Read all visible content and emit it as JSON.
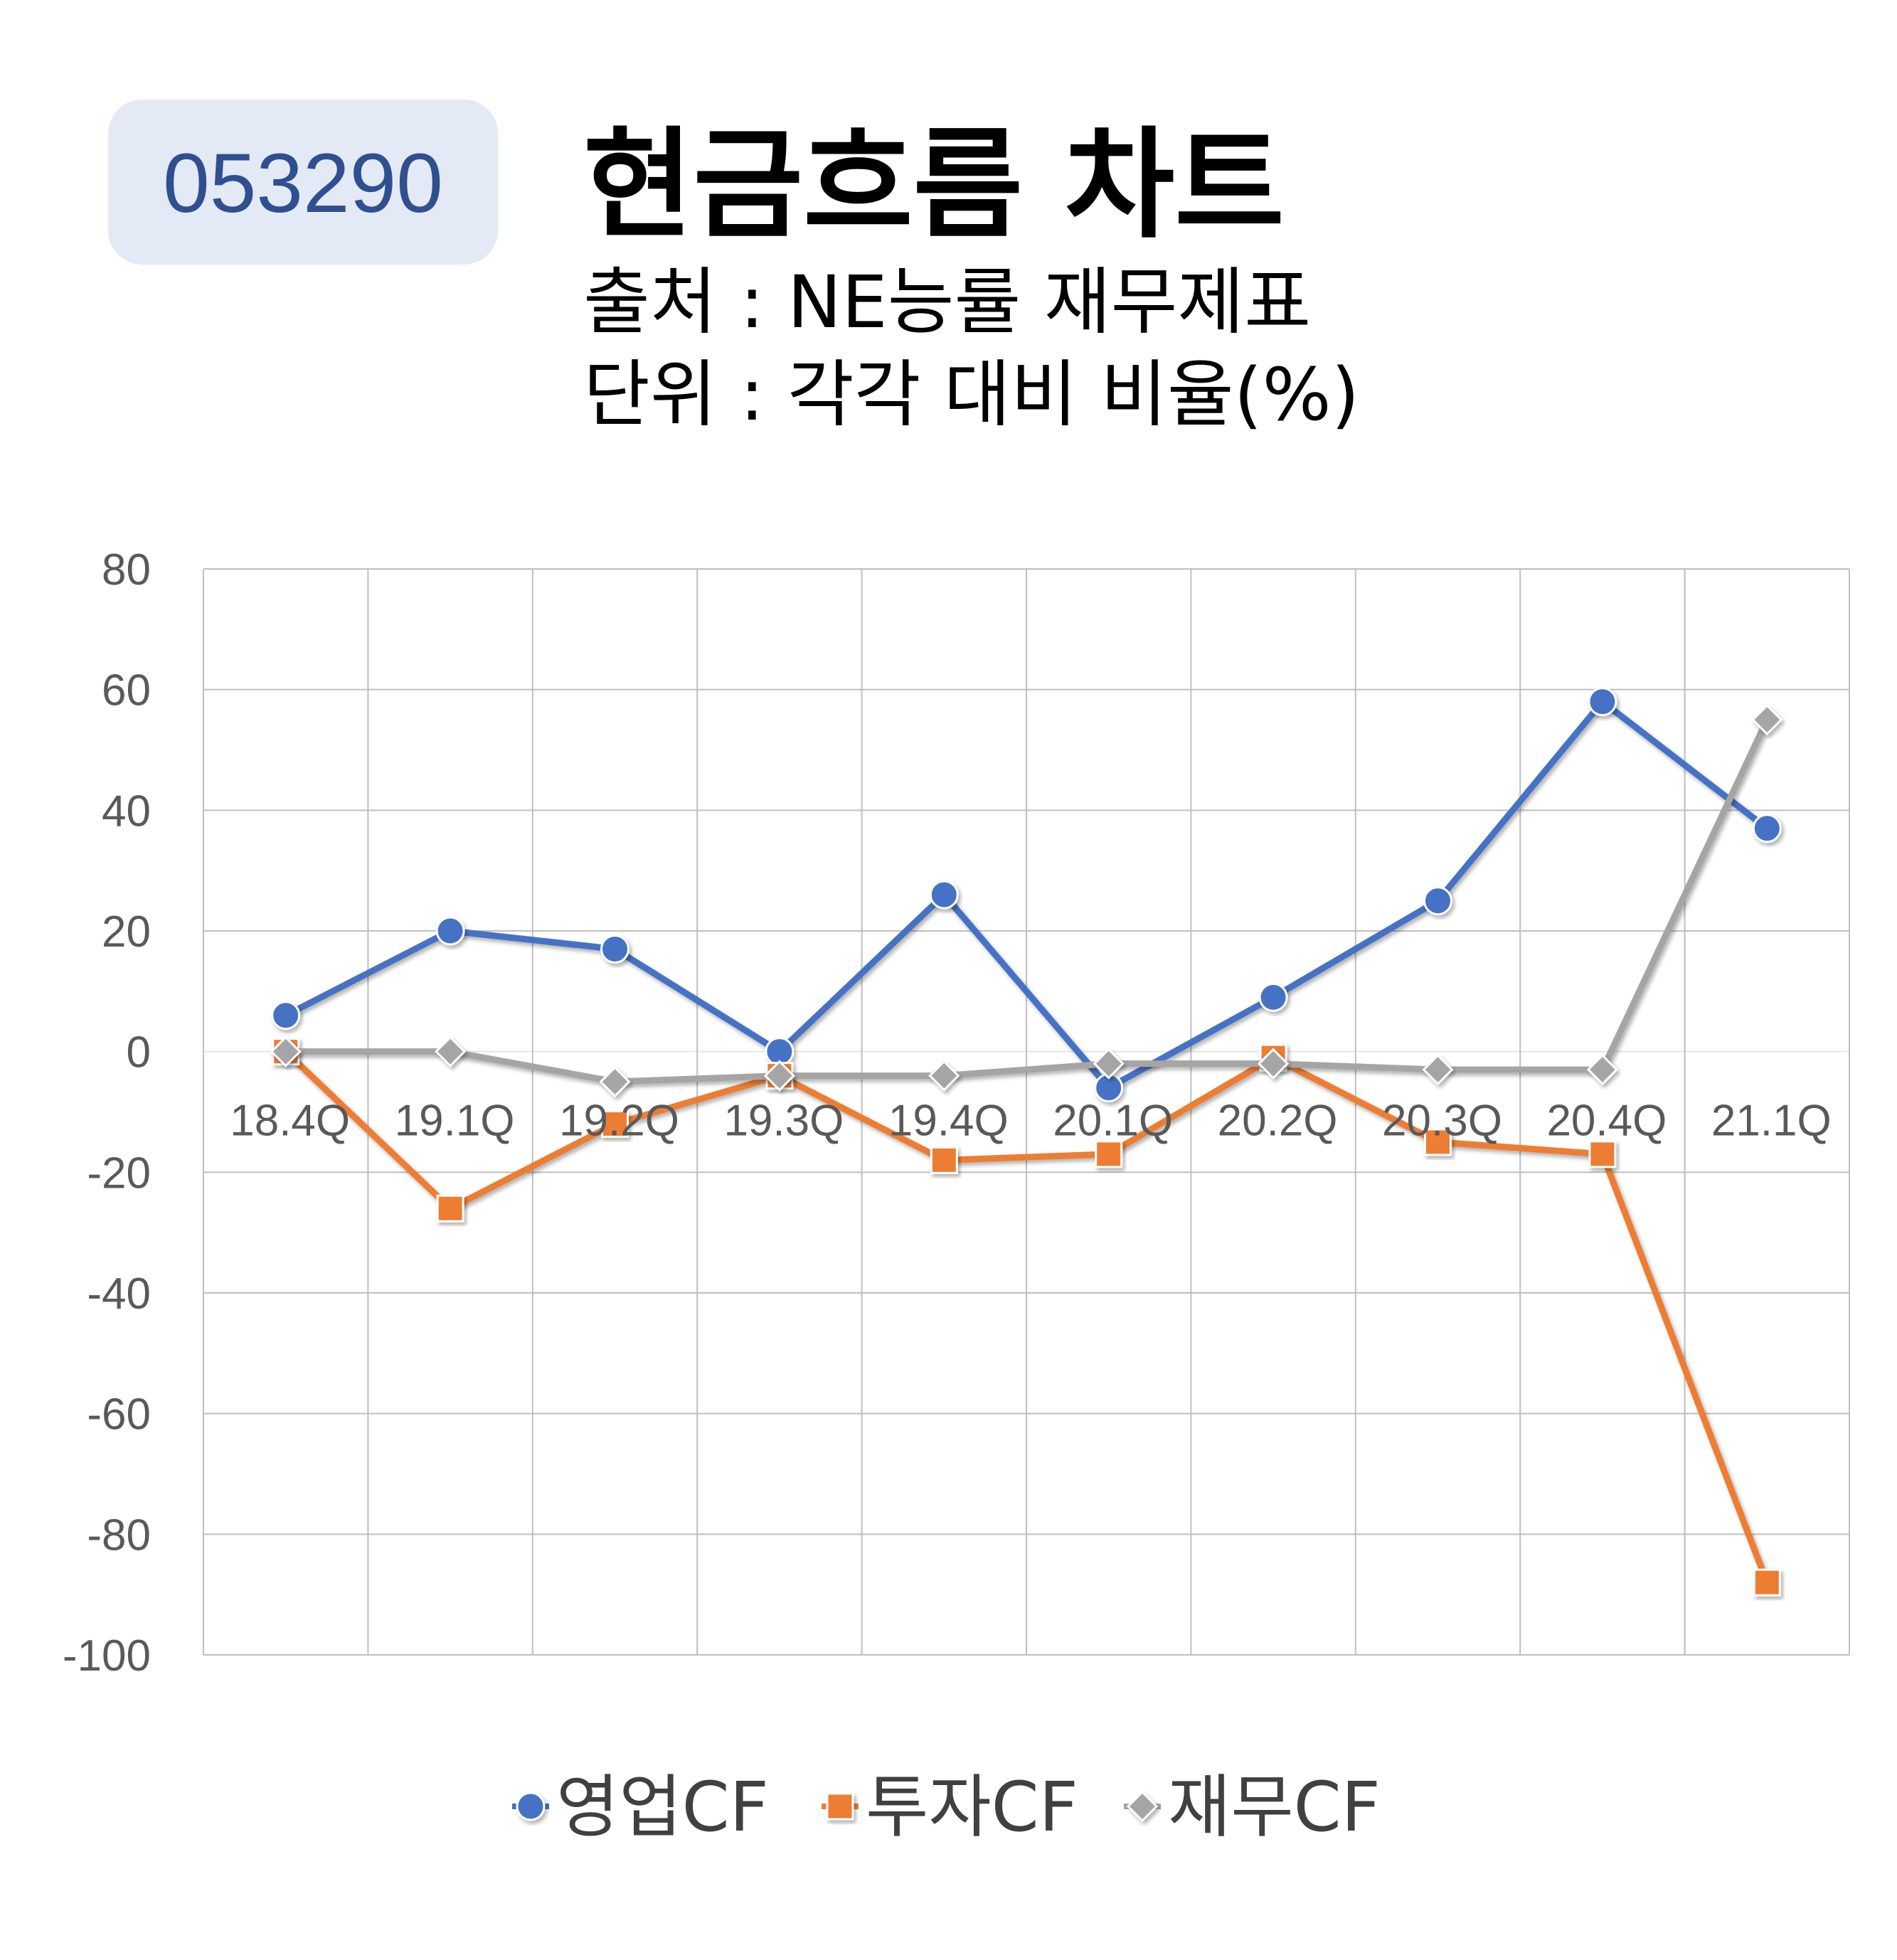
{
  "header": {
    "ticker": "053290",
    "title": "현금흐름 차트",
    "source": "출처 : NE능률 재무제표",
    "unit": "단위 : 각각 대비 비율(%)"
  },
  "colors": {
    "ticker_bg": "#E3E9F5",
    "ticker_text": "#2F4F8F",
    "grid": "#BFBFBF",
    "zero_line": "#E6E6E6",
    "tick_text": "#595959"
  },
  "chart_data": {
    "type": "line",
    "categories": [
      "18.4Q",
      "19.1Q",
      "19.2Q",
      "19.3Q",
      "19.4Q",
      "20.1Q",
      "20.2Q",
      "20.3Q",
      "20.4Q",
      "21.1Q"
    ],
    "yticks": [
      "80",
      "60",
      "40",
      "20",
      "0",
      "-20",
      "-40",
      "-60",
      "-80",
      "-100"
    ],
    "ylim": [
      -100,
      80
    ],
    "grid": true,
    "legend_position": "bottom",
    "series": [
      {
        "name": "영업CF",
        "color": "#4472C4",
        "marker": "circle",
        "values": [
          6,
          20,
          17,
          0,
          26,
          -6,
          9,
          25,
          58,
          37
        ]
      },
      {
        "name": "투자CF",
        "color": "#ED7D31",
        "marker": "square",
        "values": [
          0,
          -26,
          -12,
          -4,
          -18,
          -17,
          -1,
          -15,
          -17,
          -88
        ]
      },
      {
        "name": "재무CF",
        "color": "#A5A5A5",
        "marker": "diamond",
        "values": [
          0,
          0,
          -5,
          -4,
          -4,
          -2,
          -2,
          -3,
          -3,
          55
        ]
      }
    ]
  }
}
